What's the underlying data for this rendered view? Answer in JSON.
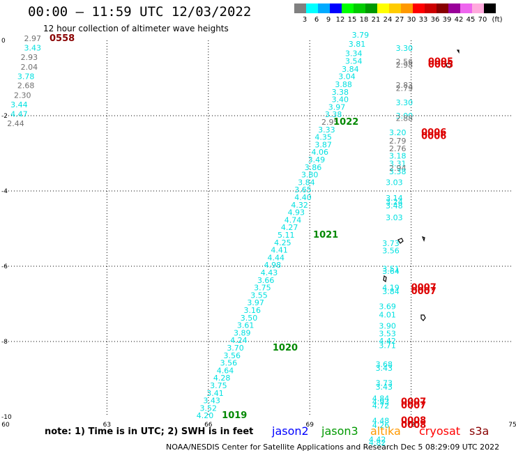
{
  "header": {
    "title": "00:00 – 11:59 UTC 12/03/2022",
    "subtitle": "12 hour collection of altimeter wave heights"
  },
  "colorbar": {
    "labels": [
      "3",
      "6",
      "9",
      "12",
      "15",
      "18",
      "21",
      "24",
      "27",
      "30",
      "33",
      "36",
      "39",
      "42",
      "45",
      "70",
      "(ft)"
    ],
    "colors": [
      "#808080",
      "#00ffff",
      "#00aaff",
      "#0000ff",
      "#00ff00",
      "#00cc00",
      "#009900",
      "#ffff00",
      "#ffcc00",
      "#ff9900",
      "#ff0000",
      "#cc0000",
      "#880000",
      "#990099",
      "#ee66ee",
      "#ffaadd",
      "#000000"
    ]
  },
  "footer": {
    "note": "note: 1) Time is in UTC; 2) SWH is in feet",
    "legend": [
      {
        "name": "jason2",
        "color": "#0000ff"
      },
      {
        "name": "jason3",
        "color": "#009900"
      },
      {
        "name": "altika",
        "color": "#ff9900"
      },
      {
        "name": "cryosat",
        "color": "#ff0000"
      },
      {
        "name": "s3a",
        "color": "#880000"
      }
    ],
    "credit": "NOAA/NESDIS Center for Satellite Applications and Research    Dec  5 08:29:09 UTC 2022"
  },
  "chart_data": {
    "type": "scatter",
    "xlim": [
      60,
      75
    ],
    "ylim": [
      -10,
      0
    ],
    "x_ticks": [
      60,
      63,
      66,
      69,
      72,
      75
    ],
    "y_ticks": [
      0,
      -2,
      -4,
      -6,
      -8,
      -10
    ],
    "grid": true,
    "colors": {
      "cyan": "#00e0e0",
      "gray": "#707070",
      "green": "#008800",
      "red": "#dd0000",
      "darkred": "#880000"
    },
    "value_labels": [
      {
        "x": 60.8,
        "y": -0.02,
        "t": "2.97",
        "c": "gray"
      },
      {
        "x": 60.8,
        "y": -0.27,
        "t": "3.43",
        "c": "cyan"
      },
      {
        "x": 60.7,
        "y": -0.52,
        "t": "2.93",
        "c": "gray"
      },
      {
        "x": 60.7,
        "y": -0.78,
        "t": "2.04",
        "c": "gray"
      },
      {
        "x": 60.6,
        "y": -1.03,
        "t": "3.78",
        "c": "cyan"
      },
      {
        "x": 60.6,
        "y": -1.27,
        "t": "2.68",
        "c": "gray"
      },
      {
        "x": 60.5,
        "y": -1.53,
        "t": "2.30",
        "c": "gray"
      },
      {
        "x": 60.4,
        "y": -1.78,
        "t": "3.44",
        "c": "cyan"
      },
      {
        "x": 60.4,
        "y": -2.03,
        "t": "4.47",
        "c": "cyan"
      },
      {
        "x": 60.3,
        "y": -2.28,
        "t": "2.44",
        "c": "gray"
      },
      {
        "x": 70.5,
        "y": 0.07,
        "t": "3.79",
        "c": "cyan"
      },
      {
        "x": 70.4,
        "y": -0.17,
        "t": "3.81",
        "c": "cyan"
      },
      {
        "x": 70.3,
        "y": -0.42,
        "t": "3.34",
        "c": "cyan"
      },
      {
        "x": 70.3,
        "y": -0.62,
        "t": "3.54",
        "c": "cyan"
      },
      {
        "x": 70.2,
        "y": -0.83,
        "t": "3.84",
        "c": "cyan"
      },
      {
        "x": 70.1,
        "y": -1.03,
        "t": "3.04",
        "c": "cyan"
      },
      {
        "x": 70.0,
        "y": -1.24,
        "t": "3.88",
        "c": "cyan"
      },
      {
        "x": 69.9,
        "y": -1.44,
        "t": "3.38",
        "c": "cyan"
      },
      {
        "x": 69.9,
        "y": -1.64,
        "t": "3.40",
        "c": "cyan"
      },
      {
        "x": 69.8,
        "y": -1.84,
        "t": "3.97",
        "c": "cyan"
      },
      {
        "x": 69.7,
        "y": -2.04,
        "t": "3.38",
        "c": "cyan"
      },
      {
        "x": 69.6,
        "y": -2.24,
        "t": "2.95",
        "c": "gray"
      },
      {
        "x": 69.5,
        "y": -2.44,
        "t": "3.33",
        "c": "cyan"
      },
      {
        "x": 69.4,
        "y": -2.64,
        "t": "4.35",
        "c": "cyan"
      },
      {
        "x": 69.4,
        "y": -2.84,
        "t": "3.87",
        "c": "cyan"
      },
      {
        "x": 69.3,
        "y": -3.04,
        "t": "4.06",
        "c": "cyan"
      },
      {
        "x": 69.2,
        "y": -3.24,
        "t": "3.49",
        "c": "cyan"
      },
      {
        "x": 69.1,
        "y": -3.44,
        "t": "3.86",
        "c": "cyan"
      },
      {
        "x": 69.0,
        "y": -3.64,
        "t": "3.80",
        "c": "cyan"
      },
      {
        "x": 68.9,
        "y": -3.84,
        "t": "3.84",
        "c": "cyan"
      },
      {
        "x": 68.8,
        "y": -4.04,
        "t": "3.65",
        "c": "cyan"
      },
      {
        "x": 68.8,
        "y": -4.24,
        "t": "4.40",
        "c": "cyan"
      },
      {
        "x": 68.7,
        "y": -4.44,
        "t": "4.32",
        "c": "cyan"
      },
      {
        "x": 68.6,
        "y": -4.64,
        "t": "4.93",
        "c": "cyan"
      },
      {
        "x": 68.5,
        "y": -4.84,
        "t": "4.74",
        "c": "cyan"
      },
      {
        "x": 68.4,
        "y": -5.04,
        "t": "4.27",
        "c": "cyan"
      },
      {
        "x": 68.3,
        "y": -5.24,
        "t": "5.11",
        "c": "cyan"
      },
      {
        "x": 68.2,
        "y": -5.44,
        "t": "4.25",
        "c": "cyan"
      },
      {
        "x": 68.1,
        "y": -5.64,
        "t": "4.41",
        "c": "cyan"
      },
      {
        "x": 68.0,
        "y": -5.84,
        "t": "4.44",
        "c": "cyan"
      },
      {
        "x": 67.9,
        "y": -6.04,
        "t": "4.98",
        "c": "cyan"
      },
      {
        "x": 67.8,
        "y": -6.24,
        "t": "4.43",
        "c": "cyan"
      },
      {
        "x": 67.7,
        "y": -6.44,
        "t": "3.66",
        "c": "cyan"
      },
      {
        "x": 67.6,
        "y": -6.64,
        "t": "3.75",
        "c": "cyan"
      },
      {
        "x": 67.5,
        "y": -6.84,
        "t": "3.55",
        "c": "cyan"
      },
      {
        "x": 67.4,
        "y": -7.04,
        "t": "3.97",
        "c": "cyan"
      },
      {
        "x": 67.3,
        "y": -7.24,
        "t": "3.16",
        "c": "cyan"
      },
      {
        "x": 67.2,
        "y": -7.44,
        "t": "3.50",
        "c": "cyan"
      },
      {
        "x": 67.1,
        "y": -7.64,
        "t": "3.61",
        "c": "cyan"
      },
      {
        "x": 67.0,
        "y": -7.84,
        "t": "3.89",
        "c": "cyan"
      },
      {
        "x": 66.9,
        "y": -8.04,
        "t": "4.24",
        "c": "cyan"
      },
      {
        "x": 66.8,
        "y": -8.24,
        "t": "3.70",
        "c": "cyan"
      },
      {
        "x": 66.7,
        "y": -8.44,
        "t": "3.56",
        "c": "cyan"
      },
      {
        "x": 66.6,
        "y": -8.64,
        "t": "3.56",
        "c": "cyan"
      },
      {
        "x": 66.5,
        "y": -8.84,
        "t": "4.64",
        "c": "cyan"
      },
      {
        "x": 66.4,
        "y": -9.04,
        "t": "4.28",
        "c": "cyan"
      },
      {
        "x": 66.3,
        "y": -9.24,
        "t": "3.75",
        "c": "cyan"
      },
      {
        "x": 66.2,
        "y": -9.44,
        "t": "3.41",
        "c": "cyan"
      },
      {
        "x": 66.1,
        "y": -9.64,
        "t": "3.43",
        "c": "cyan"
      },
      {
        "x": 66.0,
        "y": -9.84,
        "t": "3.52",
        "c": "cyan"
      },
      {
        "x": 65.9,
        "y": -10.04,
        "t": "4.20",
        "c": "cyan"
      },
      {
        "x": 71.8,
        "y": -0.28,
        "t": "3.30",
        "c": "cyan"
      },
      {
        "x": 71.8,
        "y": -0.64,
        "t": "2.56",
        "c": "gray"
      },
      {
        "x": 71.8,
        "y": -0.72,
        "t": "2.98",
        "c": "gray"
      },
      {
        "x": 71.8,
        "y": -1.26,
        "t": "2.83",
        "c": "gray"
      },
      {
        "x": 71.8,
        "y": -1.34,
        "t": "2.79",
        "c": "gray"
      },
      {
        "x": 71.8,
        "y": -1.72,
        "t": "3.30",
        "c": "cyan"
      },
      {
        "x": 71.8,
        "y": -2.07,
        "t": "3.00",
        "c": "cyan"
      },
      {
        "x": 71.8,
        "y": -2.14,
        "t": "2.88",
        "c": "gray"
      },
      {
        "x": 71.6,
        "y": -2.52,
        "t": "3.20",
        "c": "cyan"
      },
      {
        "x": 71.6,
        "y": -2.74,
        "t": "2.79",
        "c": "gray"
      },
      {
        "x": 71.6,
        "y": -2.94,
        "t": "2.76",
        "c": "gray"
      },
      {
        "x": 71.6,
        "y": -3.14,
        "t": "3.18",
        "c": "cyan"
      },
      {
        "x": 71.6,
        "y": -3.34,
        "t": "3.31",
        "c": "cyan"
      },
      {
        "x": 71.6,
        "y": -3.46,
        "t": "2.94",
        "c": "gray"
      },
      {
        "x": 71.6,
        "y": -3.56,
        "t": "3.38",
        "c": "cyan"
      },
      {
        "x": 71.5,
        "y": -3.84,
        "t": "3.03",
        "c": "cyan"
      },
      {
        "x": 71.5,
        "y": -4.26,
        "t": "3.14",
        "c": "cyan"
      },
      {
        "x": 71.5,
        "y": -4.36,
        "t": "3.24",
        "c": "cyan"
      },
      {
        "x": 71.5,
        "y": -4.46,
        "t": "3.48",
        "c": "cyan"
      },
      {
        "x": 71.5,
        "y": -4.78,
        "t": "3.03",
        "c": "cyan"
      },
      {
        "x": 71.4,
        "y": -5.46,
        "t": "3.73",
        "c": "cyan"
      },
      {
        "x": 71.4,
        "y": -5.66,
        "t": "3.56",
        "c": "cyan"
      },
      {
        "x": 71.4,
        "y": -6.14,
        "t": "3.51",
        "c": "cyan"
      },
      {
        "x": 71.4,
        "y": -6.2,
        "t": "3.64",
        "c": "cyan"
      },
      {
        "x": 71.4,
        "y": -6.64,
        "t": "4.19",
        "c": "cyan"
      },
      {
        "x": 71.4,
        "y": -6.74,
        "t": "3.84",
        "c": "cyan"
      },
      {
        "x": 71.3,
        "y": -7.14,
        "t": "3.69",
        "c": "cyan"
      },
      {
        "x": 71.3,
        "y": -7.36,
        "t": "4.01",
        "c": "cyan"
      },
      {
        "x": 71.3,
        "y": -7.66,
        "t": "3.90",
        "c": "cyan"
      },
      {
        "x": 71.3,
        "y": -7.86,
        "t": "3.53",
        "c": "cyan"
      },
      {
        "x": 71.3,
        "y": -8.06,
        "t": "4.42",
        "c": "cyan"
      },
      {
        "x": 71.3,
        "y": -8.18,
        "t": "3.71",
        "c": "cyan"
      },
      {
        "x": 71.2,
        "y": -8.68,
        "t": "3.68",
        "c": "cyan"
      },
      {
        "x": 71.2,
        "y": -8.78,
        "t": "3.43",
        "c": "cyan"
      },
      {
        "x": 71.2,
        "y": -9.18,
        "t": "3.73",
        "c": "cyan"
      },
      {
        "x": 71.2,
        "y": -9.28,
        "t": "3.43",
        "c": "cyan"
      },
      {
        "x": 71.1,
        "y": -9.58,
        "t": "4.84",
        "c": "cyan"
      },
      {
        "x": 71.1,
        "y": -9.68,
        "t": "4.93",
        "c": "cyan"
      },
      {
        "x": 71.1,
        "y": -9.78,
        "t": "4.72",
        "c": "cyan"
      },
      {
        "x": 71.1,
        "y": -10.18,
        "t": "4.48",
        "c": "cyan"
      },
      {
        "x": 71.1,
        "y": -10.3,
        "t": "4.26",
        "c": "cyan"
      },
      {
        "x": 71.0,
        "y": -10.68,
        "t": "4.42",
        "c": "cyan"
      },
      {
        "x": 71.0,
        "y": -10.76,
        "t": "4.82",
        "c": "cyan"
      }
    ],
    "time_labels": [
      {
        "x": 61.3,
        "y": -0.02,
        "t": "0558",
        "c": "darkred"
      },
      {
        "x": 69.7,
        "y": -2.24,
        "t": "1022",
        "c": "green"
      },
      {
        "x": 69.1,
        "y": -5.24,
        "t": "1021",
        "c": "green"
      },
      {
        "x": 67.9,
        "y": -8.24,
        "t": "1020",
        "c": "green"
      },
      {
        "x": 66.4,
        "y": -10.04,
        "t": "1019",
        "c": "green"
      },
      {
        "x": 72.5,
        "y": -0.64,
        "t": "0005",
        "c": "red"
      },
      {
        "x": 72.5,
        "y": -0.72,
        "t": "0005",
        "c": "red"
      },
      {
        "x": 72.3,
        "y": -2.52,
        "t": "0006",
        "c": "red"
      },
      {
        "x": 72.3,
        "y": -2.62,
        "t": "0006",
        "c": "red"
      },
      {
        "x": 72.0,
        "y": -6.64,
        "t": "0007",
        "c": "red"
      },
      {
        "x": 72.0,
        "y": -6.74,
        "t": "0007",
        "c": "red"
      },
      {
        "x": 71.7,
        "y": -9.68,
        "t": "0007",
        "c": "red"
      },
      {
        "x": 71.7,
        "y": -9.78,
        "t": "0007",
        "c": "red"
      },
      {
        "x": 71.7,
        "y": -10.18,
        "t": "0008",
        "c": "red"
      },
      {
        "x": 71.7,
        "y": -10.3,
        "t": "0008",
        "c": "red"
      }
    ]
  }
}
